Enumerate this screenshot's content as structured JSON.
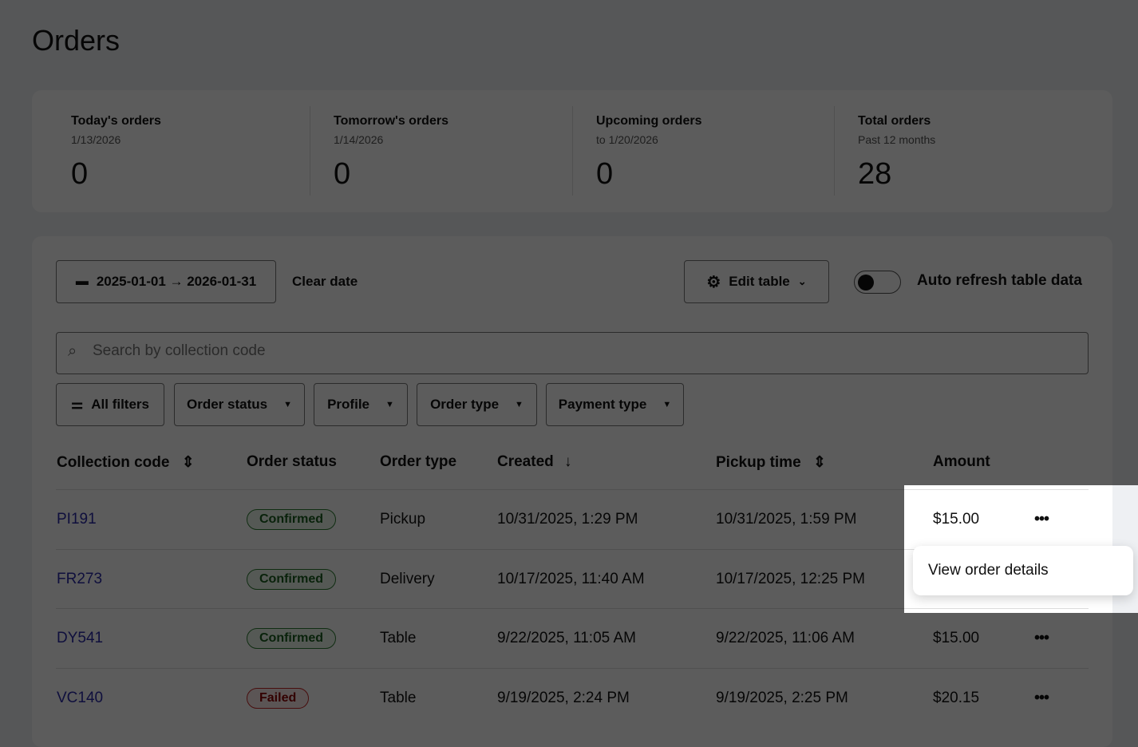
{
  "page": {
    "title": "Orders"
  },
  "stats": [
    {
      "title": "Today's orders",
      "sub": "1/13/2026",
      "value": "0"
    },
    {
      "title": "Tomorrow's orders",
      "sub": "1/14/2026",
      "value": "0"
    },
    {
      "title": "Upcoming orders",
      "sub": "to 1/20/2026",
      "value": "0"
    },
    {
      "title": "Total orders",
      "sub": "Past 12 months",
      "value": "28"
    }
  ],
  "toolbar": {
    "date_range": "2025-01-01 → 2026-01-31",
    "clear_date": "Clear date",
    "edit_table": "Edit table",
    "auto_refresh": "Auto refresh table data",
    "auto_refresh_on": false
  },
  "search": {
    "placeholder": "Search by collection code"
  },
  "filters": {
    "all": "All filters",
    "order_status": "Order status",
    "profile": "Profile",
    "order_type": "Order type",
    "payment_type": "Payment type"
  },
  "table": {
    "headers": [
      "Collection code",
      "Order status",
      "Order type",
      "Created",
      "Pickup time",
      "Amount"
    ],
    "rows": [
      {
        "code": "PI191",
        "status": "Confirmed",
        "type": "Pickup",
        "created": "10/31/2025, 1:29 PM",
        "pickup": "10/31/2025, 1:59 PM",
        "amount": "$15.00"
      },
      {
        "code": "FR273",
        "status": "Confirmed",
        "type": "Delivery",
        "created": "10/17/2025, 11:40 AM",
        "pickup": "10/17/2025, 12:25 PM",
        "amount": ""
      },
      {
        "code": "DY541",
        "status": "Confirmed",
        "type": "Table",
        "created": "9/22/2025, 11:05 AM",
        "pickup": "9/22/2025, 11:06 AM",
        "amount": "$15.00"
      },
      {
        "code": "VC140",
        "status": "Failed",
        "type": "Table",
        "created": "9/19/2025, 2:24 PM",
        "pickup": "9/19/2025, 2:25 PM",
        "amount": "$20.15"
      }
    ]
  },
  "row_menu": {
    "items": [
      "View order details"
    ]
  },
  "colors": {
    "link": "#2a2aa8",
    "confirmed": "#2e7d32",
    "failed": "#c62828",
    "overlay": "rgba(0,0,0,0.64)"
  }
}
